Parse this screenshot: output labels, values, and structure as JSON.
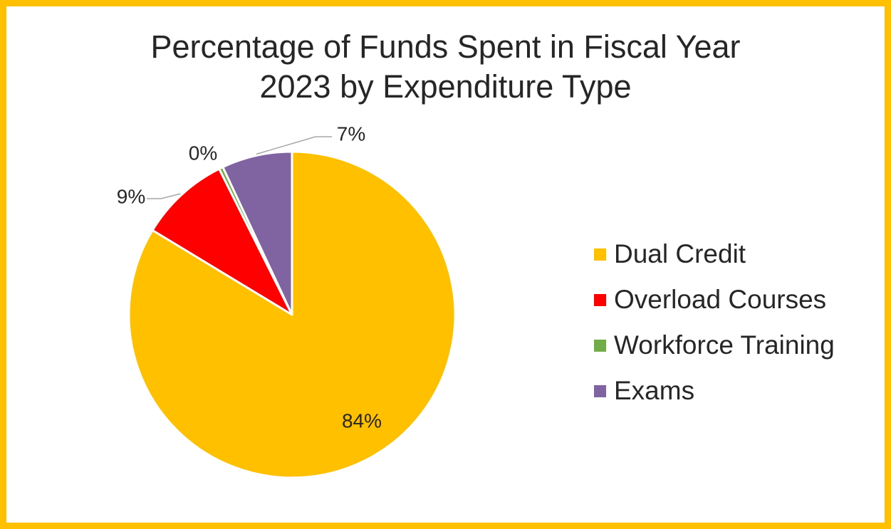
{
  "chart_data": {
    "type": "pie",
    "title": "Percentage of Funds Spent in Fiscal Year 2023 by Expenditure Type",
    "title_lines": [
      "Percentage of Funds Spent in Fiscal Year",
      "2023 by Expenditure Type"
    ],
    "legend_position": "right",
    "slices": [
      {
        "label": "Dual Credit",
        "value": 84,
        "display": "84%",
        "color": "#FFC000"
      },
      {
        "label": "Overload Courses",
        "value": 9,
        "display": "9%",
        "color": "#FF0000"
      },
      {
        "label": "Workforce Training",
        "value": 0.4,
        "display": "0%",
        "color": "#70AD47"
      },
      {
        "label": "Exams",
        "value": 7,
        "display": "7%",
        "color": "#8064A2"
      }
    ]
  },
  "frame_color": "#FFC000"
}
